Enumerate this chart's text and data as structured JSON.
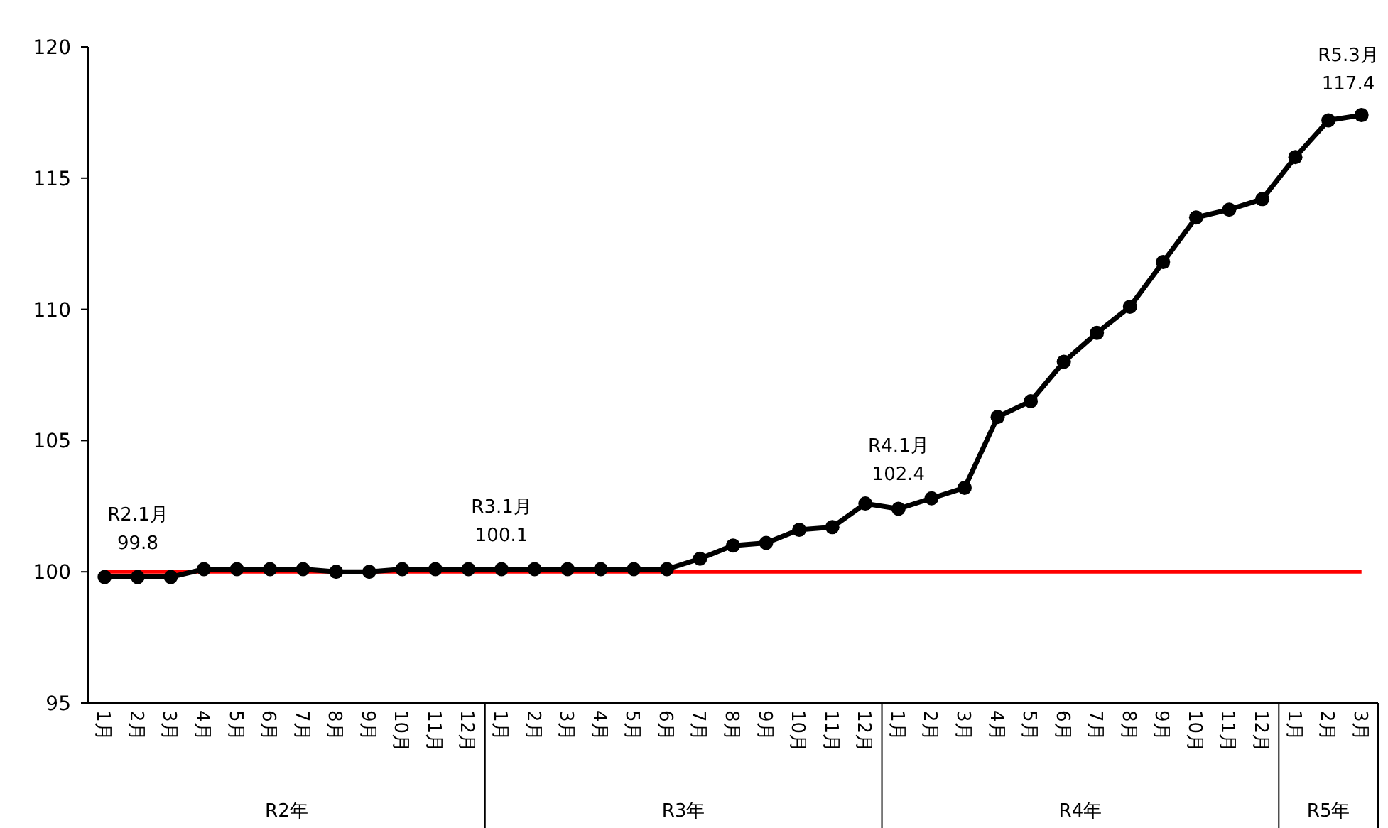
{
  "chart_data": {
    "type": "line",
    "categories": [
      "1月",
      "2月",
      "3月",
      "4月",
      "5月",
      "6月",
      "7月",
      "8月",
      "9月",
      "10月",
      "11月",
      "12月",
      "1月",
      "2月",
      "3月",
      "4月",
      "5月",
      "6月",
      "7月",
      "8月",
      "9月",
      "10月",
      "11月",
      "12月",
      "1月",
      "2月",
      "3月",
      "4月",
      "5月",
      "6月",
      "7月",
      "8月",
      "9月",
      "10月",
      "11月",
      "12月",
      "1月",
      "2月",
      "3月"
    ],
    "series": [
      {
        "color": "#000000",
        "values": [
          99.8,
          99.8,
          99.8,
          100.1,
          100.1,
          100.1,
          100.1,
          100.0,
          100.0,
          100.1,
          100.1,
          100.1,
          100.1,
          100.1,
          100.1,
          100.1,
          100.1,
          100.1,
          100.5,
          101.0,
          101.1,
          101.6,
          101.7,
          102.6,
          102.4,
          102.8,
          103.2,
          105.9,
          106.5,
          108.0,
          109.1,
          110.1,
          111.8,
          113.5,
          113.8,
          114.2,
          115.8,
          117.2,
          117.4
        ],
        "value_labels": [
          "R2.1月\n99.8",
          null,
          null,
          null,
          null,
          null,
          null,
          null,
          null,
          null,
          null,
          null,
          "R3.1月\n100.1",
          null,
          null,
          null,
          null,
          null,
          null,
          null,
          null,
          null,
          null,
          null,
          "R4.1月\n102.4",
          null,
          null,
          null,
          null,
          null,
          null,
          null,
          null,
          null,
          null,
          null,
          null,
          null,
          "R5.3月\n117.4"
        ]
      }
    ],
    "ylim": [
      95,
      120
    ],
    "yticks": [
      95,
      100,
      105,
      110,
      115,
      120
    ],
    "marker": "circle",
    "line_style": "solid",
    "grid": false,
    "ref_lines": [
      {
        "axis": "y",
        "value": 100,
        "color": "#ff0000"
      }
    ],
    "annotations": [
      "R2年",
      "R3年",
      "R4年",
      "R5年"
    ]
  }
}
